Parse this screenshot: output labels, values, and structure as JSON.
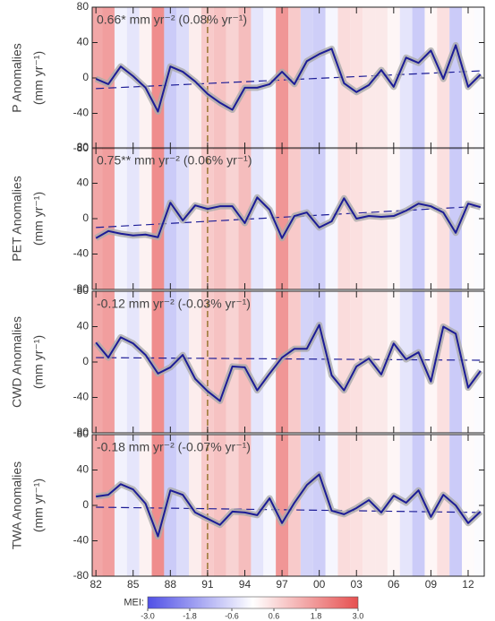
{
  "chart_data": [
    {
      "type": "line",
      "ylabel": "P Anomalies",
      "ylabel_unit": "(mm yr⁻¹)",
      "annotation": "0.66* mm yr⁻² (0.08% yr⁻¹)",
      "x": [
        1982,
        1983,
        1984,
        1985,
        1986,
        1987,
        1988,
        1989,
        1990,
        1991,
        1992,
        1993,
        1994,
        1995,
        1996,
        1997,
        1998,
        1999,
        2000,
        2001,
        2002,
        2003,
        2004,
        2005,
        2006,
        2007,
        2008,
        2009,
        2010,
        2011,
        2012,
        2013
      ],
      "values": [
        -1,
        -7,
        13,
        2,
        -11,
        -38,
        13,
        7,
        -4,
        -18,
        -28,
        -36,
        -11,
        -11,
        -7,
        7,
        -7,
        19,
        27,
        33,
        -6,
        -16,
        -8,
        9,
        -10,
        23,
        17,
        31,
        -1,
        37,
        -10,
        4
      ],
      "color": "#1c1c96",
      "trend_x": [
        1982,
        2013
      ],
      "trend_values": [
        -12,
        8
      ],
      "xlim": [
        1981.7,
        2013.3
      ],
      "ylim": [
        -80,
        80
      ],
      "yticks": [
        -80,
        -40,
        0,
        40,
        80
      ],
      "xticks": [
        {
          "value": 1982,
          "label": "82"
        },
        {
          "value": 1985,
          "label": "85"
        },
        {
          "value": 1988,
          "label": "88"
        },
        {
          "value": 1991,
          "label": "91"
        },
        {
          "value": 1994,
          "label": "94"
        },
        {
          "value": 1997,
          "label": "97"
        },
        {
          "value": 2000,
          "label": "00"
        },
        {
          "value": 2003,
          "label": "03"
        },
        {
          "value": 2006,
          "label": "06"
        },
        {
          "value": 2009,
          "label": "09"
        },
        {
          "value": 2012,
          "label": "12"
        }
      ]
    },
    {
      "type": "line",
      "ylabel": "PET Anomalies",
      "ylabel_unit": "(mm yr⁻¹)",
      "annotation": "0.75** mm yr⁻² (0.06% yr⁻¹)",
      "x": [
        1982,
        1983,
        1984,
        1985,
        1986,
        1987,
        1988,
        1989,
        1990,
        1991,
        1992,
        1993,
        1994,
        1995,
        1996,
        1997,
        1998,
        1999,
        2000,
        2001,
        2002,
        2003,
        2004,
        2005,
        2006,
        2007,
        2008,
        2009,
        2010,
        2011,
        2012,
        2013
      ],
      "values": [
        -22,
        -14,
        -17,
        -19,
        -18,
        -21,
        18,
        -2,
        15,
        11,
        14,
        14,
        -5,
        24,
        10,
        -22,
        3,
        7,
        -10,
        -3,
        23,
        0,
        3,
        2,
        3,
        9,
        17,
        14,
        7,
        -16,
        17,
        13
      ],
      "color": "#1c1c96",
      "trend_x": [
        1982,
        2013
      ],
      "trend_values": [
        -10,
        14
      ],
      "xlim": [
        1981.7,
        2013.3
      ],
      "ylim": [
        -80,
        80
      ],
      "yticks": [
        -80,
        -40,
        0,
        40,
        80
      ],
      "xticks": [
        {
          "value": 1982,
          "label": "82"
        },
        {
          "value": 1985,
          "label": "85"
        },
        {
          "value": 1988,
          "label": "88"
        },
        {
          "value": 1991,
          "label": "91"
        },
        {
          "value": 1994,
          "label": "94"
        },
        {
          "value": 1997,
          "label": "97"
        },
        {
          "value": 2000,
          "label": "00"
        },
        {
          "value": 2003,
          "label": "03"
        },
        {
          "value": 2006,
          "label": "06"
        },
        {
          "value": 2009,
          "label": "09"
        },
        {
          "value": 2012,
          "label": "12"
        }
      ]
    },
    {
      "type": "line",
      "ylabel": "CWD Anomalies",
      "ylabel_unit": "(mm yr⁻¹)",
      "annotation": "-0.12 mm yr⁻² (-0.03% yr⁻¹)",
      "x": [
        1982,
        1983,
        1984,
        1985,
        1986,
        1987,
        1988,
        1989,
        1990,
        1991,
        1992,
        1993,
        1994,
        1995,
        1996,
        1997,
        1998,
        1999,
        2000,
        2001,
        2002,
        2003,
        2004,
        2005,
        2006,
        2007,
        2008,
        2009,
        2010,
        2011,
        2012,
        2013
      ],
      "values": [
        22,
        5,
        28,
        21,
        8,
        -13,
        -6,
        8,
        -19,
        -33,
        -44,
        -5,
        -6,
        -32,
        -13,
        5,
        15,
        15,
        42,
        -15,
        -32,
        -5,
        4,
        -14,
        21,
        3,
        11,
        -22,
        40,
        32,
        -29,
        -10
      ],
      "color": "#1c1c96",
      "trend_x": [
        1982,
        2013
      ],
      "trend_values": [
        5,
        2
      ],
      "xlim": [
        1981.7,
        2013.3
      ],
      "ylim": [
        -80,
        80
      ],
      "yticks": [
        -80,
        -40,
        0,
        40,
        80
      ],
      "xticks": [
        {
          "value": 1982,
          "label": "82"
        },
        {
          "value": 1985,
          "label": "85"
        },
        {
          "value": 1988,
          "label": "88"
        },
        {
          "value": 1991,
          "label": "91"
        },
        {
          "value": 1994,
          "label": "94"
        },
        {
          "value": 1997,
          "label": "97"
        },
        {
          "value": 2000,
          "label": "00"
        },
        {
          "value": 2003,
          "label": "03"
        },
        {
          "value": 2006,
          "label": "06"
        },
        {
          "value": 2009,
          "label": "09"
        },
        {
          "value": 2012,
          "label": "12"
        }
      ]
    },
    {
      "type": "line",
      "ylabel": "TWA Anomalies",
      "ylabel_unit": "(mm yr⁻¹)",
      "annotation": "-0.18 mm yr⁻² (-0.07% yr⁻¹)",
      "x": [
        1982,
        1983,
        1984,
        1985,
        1986,
        1987,
        1988,
        1989,
        1990,
        1991,
        1992,
        1993,
        1994,
        1995,
        1996,
        1997,
        1998,
        1999,
        2000,
        2001,
        2002,
        2003,
        2004,
        2005,
        2006,
        2007,
        2008,
        2009,
        2010,
        2011,
        2012,
        2013
      ],
      "values": [
        10,
        12,
        24,
        18,
        2,
        -35,
        17,
        12,
        -8,
        -15,
        -22,
        -7,
        -8,
        -11,
        8,
        -20,
        3,
        23,
        35,
        -6,
        -10,
        -3,
        6,
        -8,
        11,
        3,
        17,
        -13,
        12,
        0,
        -20,
        -7
      ],
      "color": "#1c1c96",
      "trend_x": [
        1982,
        2013
      ],
      "trend_values": [
        -2,
        -8
      ],
      "xlim": [
        1981.7,
        2013.3
      ],
      "ylim": [
        -80,
        80
      ],
      "yticks": [
        -80,
        -40,
        0,
        40,
        80
      ],
      "xticks": [
        {
          "value": 1982,
          "label": "82"
        },
        {
          "value": 1985,
          "label": "85"
        },
        {
          "value": 1988,
          "label": "88"
        },
        {
          "value": 1991,
          "label": "91"
        },
        {
          "value": 1994,
          "label": "94"
        },
        {
          "value": 1997,
          "label": "97"
        },
        {
          "value": 2000,
          "label": "00"
        },
        {
          "value": 2003,
          "label": "03"
        },
        {
          "value": 2006,
          "label": "06"
        },
        {
          "value": 2009,
          "label": "09"
        },
        {
          "value": 2012,
          "label": "12"
        }
      ]
    }
  ],
  "event_year": 1991,
  "mei": {
    "x": [
      1982,
      1983,
      1984,
      1985,
      1986,
      1987,
      1988,
      1989,
      1990,
      1991,
      1992,
      1993,
      1994,
      1995,
      1996,
      1997,
      1998,
      1999,
      2000,
      2001,
      2002,
      2003,
      2004,
      2005,
      2006,
      2007,
      2008,
      2009,
      2010,
      2011,
      2012,
      2013
    ],
    "values": [
      2.0,
      2.2,
      -0.3,
      -0.6,
      0.3,
      2.6,
      -1.2,
      -0.8,
      0.4,
      1.2,
      1.4,
      1.0,
      1.5,
      -0.6,
      -0.2,
      2.4,
      1.2,
      -1.0,
      -1.1,
      -0.2,
      0.8,
      0.7,
      0.5,
      0.5,
      0.2,
      -0.6,
      -1.2,
      0.2,
      0.7,
      -1.2,
      0.1,
      -0.1
    ]
  },
  "colorbar": {
    "label": "MEI:",
    "lim": [
      -3,
      3
    ],
    "ticks": [
      {
        "value": -3,
        "label": "-3.0"
      },
      {
        "value": -1.8,
        "label": "-1.8"
      },
      {
        "value": -0.6,
        "label": "-0.6"
      },
      {
        "value": 0.6,
        "label": "0.6"
      },
      {
        "value": 1.8,
        "label": "1.8"
      },
      {
        "value": 3,
        "label": "3.0"
      }
    ]
  }
}
